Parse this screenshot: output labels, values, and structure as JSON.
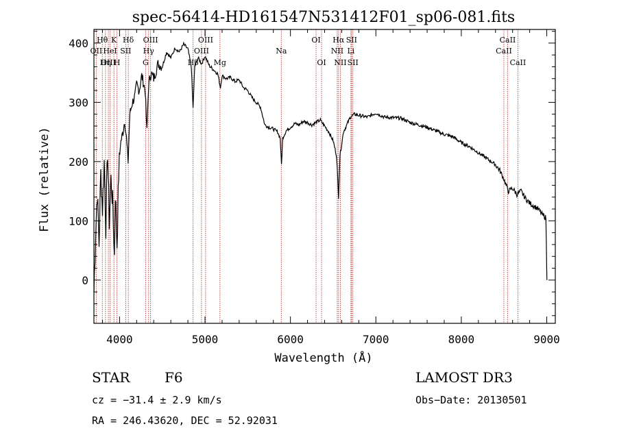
{
  "chart_data": {
    "type": "line",
    "title": "spec-56414-HD161547N531412F01_sp06-081.fits",
    "xlabel": "Wavelength (Å)",
    "ylabel": "Flux (relative)",
    "xlim": [
      3700,
      9100
    ],
    "ylim": [
      -73,
      423
    ],
    "xticks": [
      4000,
      5000,
      6000,
      7000,
      8000,
      9000
    ],
    "yticks": [
      0,
      100,
      200,
      300,
      400
    ],
    "series": [
      {
        "values": [
          [
            3700,
            -20
          ],
          [
            3720,
            80
          ],
          [
            3740,
            150
          ],
          [
            3760,
            60
          ],
          [
            3780,
            180
          ],
          [
            3800,
            120
          ],
          [
            3820,
            200
          ],
          [
            3840,
            90
          ],
          [
            3860,
            220
          ],
          [
            3880,
            100
          ],
          [
            3900,
            170
          ],
          [
            3920,
            130
          ],
          [
            3940,
            40
          ],
          [
            3950,
            150
          ],
          [
            3970,
            60
          ],
          [
            3990,
            180
          ],
          [
            4010,
            230
          ],
          [
            4040,
            250
          ],
          [
            4060,
            270
          ],
          [
            4080,
            240
          ],
          [
            4100,
            200
          ],
          [
            4120,
            280
          ],
          [
            4150,
            300
          ],
          [
            4180,
            310
          ],
          [
            4200,
            330
          ],
          [
            4230,
            320
          ],
          [
            4260,
            345
          ],
          [
            4300,
            320
          ],
          [
            4320,
            250
          ],
          [
            4340,
            330
          ],
          [
            4370,
            350
          ],
          [
            4400,
            340
          ],
          [
            4450,
            365
          ],
          [
            4500,
            360
          ],
          [
            4550,
            385
          ],
          [
            4600,
            375
          ],
          [
            4650,
            392
          ],
          [
            4700,
            385
          ],
          [
            4750,
            398
          ],
          [
            4800,
            390
          ],
          [
            4840,
            360
          ],
          [
            4860,
            290
          ],
          [
            4880,
            360
          ],
          [
            4920,
            375
          ],
          [
            4960,
            365
          ],
          [
            5000,
            378
          ],
          [
            5050,
            362
          ],
          [
            5100,
            355
          ],
          [
            5150,
            348
          ],
          [
            5180,
            325
          ],
          [
            5200,
            345
          ],
          [
            5250,
            340
          ],
          [
            5300,
            342
          ],
          [
            5350,
            335
          ],
          [
            5400,
            338
          ],
          [
            5450,
            325
          ],
          [
            5500,
            320
          ],
          [
            5550,
            308
          ],
          [
            5600,
            300
          ],
          [
            5650,
            292
          ],
          [
            5700,
            262
          ],
          [
            5750,
            258
          ],
          [
            5800,
            255
          ],
          [
            5850,
            250
          ],
          [
            5880,
            240
          ],
          [
            5895,
            195
          ],
          [
            5910,
            240
          ],
          [
            5950,
            252
          ],
          [
            6000,
            258
          ],
          [
            6050,
            264
          ],
          [
            6100,
            262
          ],
          [
            6150,
            268
          ],
          [
            6200,
            266
          ],
          [
            6250,
            262
          ],
          [
            6300,
            266
          ],
          [
            6350,
            270
          ],
          [
            6400,
            260
          ],
          [
            6450,
            250
          ],
          [
            6500,
            235
          ],
          [
            6540,
            210
          ],
          [
            6563,
            140
          ],
          [
            6580,
            210
          ],
          [
            6620,
            250
          ],
          [
            6660,
            262
          ],
          [
            6700,
            275
          ],
          [
            6750,
            280
          ],
          [
            6800,
            278
          ],
          [
            6900,
            275
          ],
          [
            7000,
            282
          ],
          [
            7100,
            275
          ],
          [
            7200,
            274
          ],
          [
            7300,
            273
          ],
          [
            7400,
            266
          ],
          [
            7500,
            262
          ],
          [
            7600,
            258
          ],
          [
            7700,
            252
          ],
          [
            7800,
            246
          ],
          [
            7900,
            242
          ],
          [
            8000,
            232
          ],
          [
            8100,
            225
          ],
          [
            8200,
            215
          ],
          [
            8300,
            205
          ],
          [
            8400,
            195
          ],
          [
            8450,
            185
          ],
          [
            8500,
            170
          ],
          [
            8550,
            150
          ],
          [
            8600,
            155
          ],
          [
            8650,
            145
          ],
          [
            8700,
            150
          ],
          [
            8750,
            138
          ],
          [
            8800,
            130
          ],
          [
            8850,
            125
          ],
          [
            8900,
            120
          ],
          [
            8950,
            110
          ],
          [
            8990,
            105
          ],
          [
            9000,
            20
          ],
          [
            9002,
            0
          ]
        ]
      }
    ],
    "spectral_lines": [
      {
        "label": "Hθ",
        "wave": 3798,
        "row": 0
      },
      {
        "label": "OII",
        "wave": 3727,
        "row": 1
      },
      {
        "label": "OIII",
        "wave": 3869,
        "row": 2
      },
      {
        "label": "K",
        "wave": 3934,
        "row": 0
      },
      {
        "label": "HeI",
        "wave": 3889,
        "row": 1
      },
      {
        "label": "Hη",
        "wave": 3835,
        "row": 2
      },
      {
        "label": "H",
        "wave": 3970,
        "row": 2
      },
      {
        "label": "Hδ",
        "wave": 4102,
        "row": 0
      },
      {
        "label": "SII",
        "wave": 4072,
        "row": 1
      },
      {
        "label": "OIII",
        "wave": 4363,
        "row": 0
      },
      {
        "label": "Hγ",
        "wave": 4340,
        "row": 1
      },
      {
        "label": "G",
        "wave": 4305,
        "row": 2
      },
      {
        "label": "OIII",
        "wave": 5007,
        "row": 0
      },
      {
        "label": "OIII",
        "wave": 4959,
        "row": 1
      },
      {
        "label": "Hβ",
        "wave": 4861,
        "row": 2
      },
      {
        "label": "Mg",
        "wave": 5175,
        "row": 2
      },
      {
        "label": "Na",
        "wave": 5893,
        "row": 1
      },
      {
        "label": "OI",
        "wave": 6300,
        "row": 0
      },
      {
        "label": "OI",
        "wave": 6364,
        "row": 2
      },
      {
        "label": "Hα",
        "wave": 6563,
        "row": 0
      },
      {
        "label": "SII",
        "wave": 6716,
        "row": 0
      },
      {
        "label": "NII",
        "wave": 6548,
        "row": 1
      },
      {
        "label": "Li",
        "wave": 6708,
        "row": 1
      },
      {
        "label": "NII",
        "wave": 6584,
        "row": 2
      },
      {
        "label": "SII",
        "wave": 6731,
        "row": 2
      },
      {
        "label": "CaII",
        "wave": 8542,
        "row": 0
      },
      {
        "label": "CaII",
        "wave": 8498,
        "row": 1
      },
      {
        "label": "CaII",
        "wave": 8662,
        "row": 2
      }
    ],
    "grid": false,
    "line_color": "#000000",
    "marker_color": "#b22222"
  },
  "info": {
    "object_type": "STAR",
    "subclass": "F6",
    "survey": "LAMOST DR3",
    "cz": "cz = −31.4 ± 2.9 km/s",
    "obs_date": "Obs−Date: 20130501",
    "coords": "RA = 246.43620, DEC =  52.92031"
  }
}
